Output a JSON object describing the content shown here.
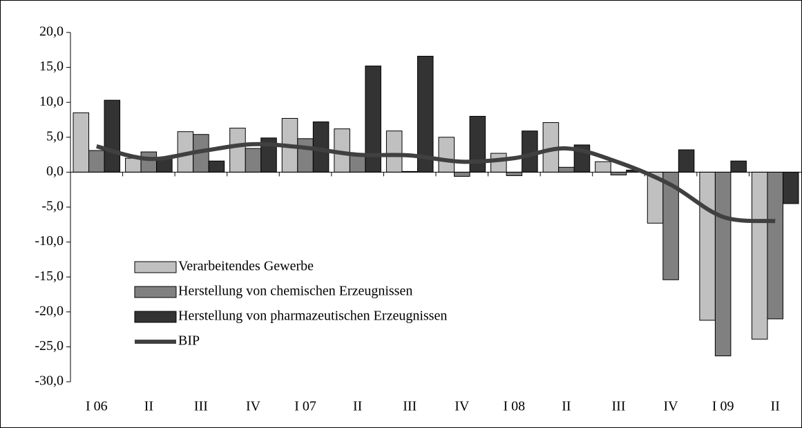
{
  "chart_data": {
    "type": "bar",
    "categories": [
      "I 06",
      "II",
      "III",
      "IV",
      "I 07",
      "II",
      "III",
      "IV",
      "I 08",
      "II",
      "III",
      "IV",
      "I 09",
      "II"
    ],
    "series": [
      {
        "name": "Verarbeitendes Gewerbe",
        "color": "#c0c0c0",
        "values": [
          8.5,
          2.0,
          5.8,
          6.3,
          7.7,
          6.2,
          5.9,
          5.0,
          2.7,
          7.1,
          1.5,
          -7.3,
          -21.2,
          -23.9
        ]
      },
      {
        "name": "Herstellung von chemischen Erzeugnissen",
        "color": "#808080",
        "values": [
          3.1,
          2.9,
          5.4,
          3.4,
          4.8,
          2.5,
          0.1,
          -0.6,
          -0.5,
          0.7,
          -0.4,
          -15.4,
          -26.3,
          -21.0
        ]
      },
      {
        "name": "Herstellung von pharmazeutischen Erzeugnissen",
        "color": "#333333",
        "values": [
          10.3,
          2.0,
          1.6,
          4.9,
          7.2,
          15.2,
          16.6,
          8.0,
          5.9,
          3.9,
          0.3,
          3.2,
          1.6,
          -4.5
        ]
      },
      {
        "name": "BIP",
        "type": "line",
        "color": "#404040",
        "values": [
          3.7,
          1.9,
          3.0,
          4.0,
          3.5,
          2.5,
          2.4,
          1.5,
          2.0,
          3.4,
          1.4,
          -1.8,
          -6.4,
          -7.0
        ]
      }
    ],
    "ylim": [
      -30,
      20
    ],
    "yticks": [
      {
        "value": -30,
        "label": "-30,0"
      },
      {
        "value": -25,
        "label": "-25,0"
      },
      {
        "value": -20,
        "label": "-20,0"
      },
      {
        "value": -15,
        "label": "-15,0"
      },
      {
        "value": -10,
        "label": "-10,0"
      },
      {
        "value": -5,
        "label": "-5,0"
      },
      {
        "value": 0,
        "label": "0,0"
      },
      {
        "value": 5,
        "label": "5,0"
      },
      {
        "value": 10,
        "label": "10,0"
      },
      {
        "value": 15,
        "label": "15,0"
      },
      {
        "value": 20,
        "label": "20,0"
      }
    ],
    "grid": false,
    "legend": "lower-left"
  }
}
